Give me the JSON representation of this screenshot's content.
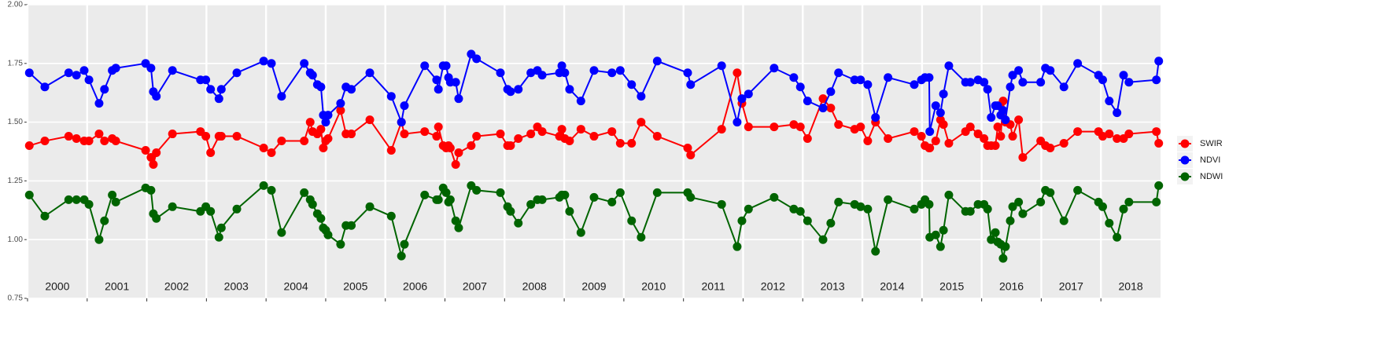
{
  "chart_data": {
    "type": "line",
    "x": [
      2000.03,
      2000.29,
      2000.69,
      2000.82,
      2000.95,
      2001.03,
      2001.2,
      2001.29,
      2001.42,
      2001.48,
      2001.98,
      2002.07,
      2002.11,
      2002.16,
      2002.43,
      2002.9,
      2002.99,
      2003.07,
      2003.21,
      2003.25,
      2003.51,
      2003.96,
      2004.09,
      2004.26,
      2004.64,
      2004.74,
      2004.78,
      2004.86,
      2004.92,
      2004.96,
      2005.0,
      2005.04,
      2005.25,
      2005.34,
      2005.43,
      2005.74,
      2006.1,
      2006.27,
      2006.32,
      2006.66,
      2006.86,
      2006.89,
      2006.97,
      2007.02,
      2007.06,
      2007.09,
      2007.18,
      2007.23,
      2007.44,
      2007.53,
      2007.93,
      2008.05,
      2008.1,
      2008.23,
      2008.44,
      2008.55,
      2008.63,
      2008.92,
      2008.96,
      2009.01,
      2009.09,
      2009.28,
      2009.5,
      2009.8,
      2009.94,
      2010.13,
      2010.29,
      2010.56,
      2011.07,
      2011.12,
      2011.64,
      2011.9,
      2011.98,
      2012.09,
      2012.52,
      2012.85,
      2012.96,
      2013.08,
      2013.34,
      2013.47,
      2013.6,
      2013.87,
      2013.97,
      2014.09,
      2014.22,
      2014.43,
      2014.87,
      2014.99,
      2015.05,
      2015.12,
      2015.13,
      2015.23,
      2015.31,
      2015.36,
      2015.45,
      2015.73,
      2015.81,
      2015.94,
      2016.04,
      2016.1,
      2016.16,
      2016.23,
      2016.27,
      2016.32,
      2016.36,
      2016.4,
      2016.48,
      2016.52,
      2016.62,
      2016.69,
      2016.99,
      2017.07,
      2017.15,
      2017.38,
      2017.61,
      2017.96,
      2018.03,
      2018.14,
      2018.27,
      2018.38,
      2018.47,
      2018.93,
      2018.97
    ],
    "series": [
      {
        "name": "SWIR",
        "color": "#ff0000",
        "values": [
          1.4,
          1.42,
          1.44,
          1.43,
          1.42,
          1.42,
          1.45,
          1.42,
          1.43,
          1.42,
          1.38,
          1.35,
          1.32,
          1.37,
          1.45,
          1.46,
          1.44,
          1.37,
          1.44,
          1.44,
          1.44,
          1.39,
          1.37,
          1.42,
          1.42,
          1.5,
          1.46,
          1.45,
          1.47,
          1.39,
          1.42,
          1.43,
          1.55,
          1.45,
          1.45,
          1.51,
          1.38,
          1.5,
          1.45,
          1.46,
          1.44,
          1.48,
          1.4,
          1.39,
          1.4,
          1.39,
          1.32,
          1.37,
          1.4,
          1.44,
          1.45,
          1.4,
          1.4,
          1.43,
          1.45,
          1.48,
          1.46,
          1.44,
          1.47,
          1.43,
          1.42,
          1.47,
          1.44,
          1.46,
          1.41,
          1.41,
          1.5,
          1.44,
          1.39,
          1.36,
          1.47,
          1.71,
          1.58,
          1.48,
          1.48,
          1.49,
          1.48,
          1.43,
          1.6,
          1.56,
          1.49,
          1.47,
          1.48,
          1.42,
          1.5,
          1.43,
          1.46,
          1.44,
          1.4,
          1.39,
          1.39,
          1.42,
          1.51,
          1.49,
          1.41,
          1.46,
          1.48,
          1.45,
          1.43,
          1.4,
          1.4,
          1.4,
          1.48,
          1.44,
          1.59,
          1.5,
          1.49,
          1.44,
          1.51,
          1.35,
          1.42,
          1.4,
          1.39,
          1.41,
          1.46,
          1.46,
          1.44,
          1.45,
          1.43,
          1.43,
          1.45,
          1.46,
          1.41
        ]
      },
      {
        "name": "NDVI",
        "color": "#0000ff",
        "values": [
          1.71,
          1.65,
          1.71,
          1.7,
          1.72,
          1.68,
          1.58,
          1.64,
          1.72,
          1.73,
          1.75,
          1.73,
          1.63,
          1.61,
          1.72,
          1.68,
          1.68,
          1.64,
          1.6,
          1.64,
          1.71,
          1.76,
          1.75,
          1.61,
          1.75,
          1.71,
          1.7,
          1.66,
          1.65,
          1.53,
          1.5,
          1.53,
          1.58,
          1.65,
          1.64,
          1.71,
          1.61,
          1.5,
          1.57,
          1.74,
          1.68,
          1.64,
          1.74,
          1.74,
          1.69,
          1.67,
          1.67,
          1.6,
          1.79,
          1.77,
          1.71,
          1.64,
          1.63,
          1.64,
          1.71,
          1.72,
          1.7,
          1.71,
          1.74,
          1.71,
          1.64,
          1.59,
          1.72,
          1.71,
          1.72,
          1.66,
          1.61,
          1.76,
          1.71,
          1.66,
          1.74,
          1.5,
          1.6,
          1.62,
          1.73,
          1.69,
          1.65,
          1.59,
          1.56,
          1.63,
          1.71,
          1.68,
          1.68,
          1.66,
          1.52,
          1.69,
          1.66,
          1.68,
          1.69,
          1.69,
          1.46,
          1.57,
          1.54,
          1.62,
          1.74,
          1.67,
          1.67,
          1.68,
          1.67,
          1.64,
          1.52,
          1.57,
          1.57,
          1.53,
          1.55,
          1.51,
          1.65,
          1.7,
          1.72,
          1.67,
          1.67,
          1.73,
          1.72,
          1.65,
          1.75,
          1.7,
          1.68,
          1.59,
          1.54,
          1.7,
          1.67,
          1.68,
          1.76
        ]
      },
      {
        "name": "NDWI",
        "color": "#006400",
        "values": [
          1.19,
          1.1,
          1.17,
          1.17,
          1.17,
          1.15,
          1.0,
          1.08,
          1.19,
          1.16,
          1.22,
          1.21,
          1.11,
          1.09,
          1.14,
          1.12,
          1.14,
          1.12,
          1.01,
          1.05,
          1.13,
          1.23,
          1.21,
          1.03,
          1.2,
          1.17,
          1.15,
          1.11,
          1.09,
          1.05,
          1.04,
          1.02,
          0.98,
          1.06,
          1.06,
          1.14,
          1.1,
          0.93,
          0.98,
          1.19,
          1.17,
          1.17,
          1.22,
          1.2,
          1.16,
          1.17,
          1.08,
          1.05,
          1.23,
          1.21,
          1.2,
          1.14,
          1.12,
          1.07,
          1.15,
          1.17,
          1.17,
          1.18,
          1.19,
          1.19,
          1.12,
          1.03,
          1.18,
          1.16,
          1.2,
          1.08,
          1.01,
          1.2,
          1.2,
          1.18,
          1.15,
          0.97,
          1.08,
          1.13,
          1.18,
          1.13,
          1.12,
          1.08,
          1.0,
          1.07,
          1.16,
          1.15,
          1.14,
          1.13,
          0.95,
          1.17,
          1.13,
          1.15,
          1.17,
          1.15,
          1.01,
          1.02,
          0.97,
          1.04,
          1.19,
          1.12,
          1.12,
          1.15,
          1.15,
          1.13,
          1.0,
          1.03,
          0.99,
          0.98,
          0.92,
          0.97,
          1.08,
          1.14,
          1.16,
          1.11,
          1.16,
          1.21,
          1.2,
          1.08,
          1.21,
          1.16,
          1.14,
          1.07,
          1.01,
          1.13,
          1.16,
          1.16,
          1.23
        ]
      }
    ],
    "xlim": [
      2000,
      2019
    ],
    "xticks": [
      2000,
      2001,
      2002,
      2003,
      2004,
      2005,
      2006,
      2007,
      2008,
      2009,
      2010,
      2011,
      2012,
      2013,
      2014,
      2015,
      2016,
      2017,
      2018
    ],
    "ylim": [
      0.75,
      2.0
    ],
    "yticks": [
      {
        "value": 0.75,
        "label": "0.75"
      },
      {
        "value": 1.0,
        "label": "1.00"
      },
      {
        "value": 1.25,
        "label": "1.25"
      },
      {
        "value": 1.5,
        "label": "1.50"
      },
      {
        "value": 1.75,
        "label": "1.75"
      },
      {
        "value": 2.0,
        "label": "2.00"
      }
    ],
    "grid": true,
    "legend": "right"
  }
}
